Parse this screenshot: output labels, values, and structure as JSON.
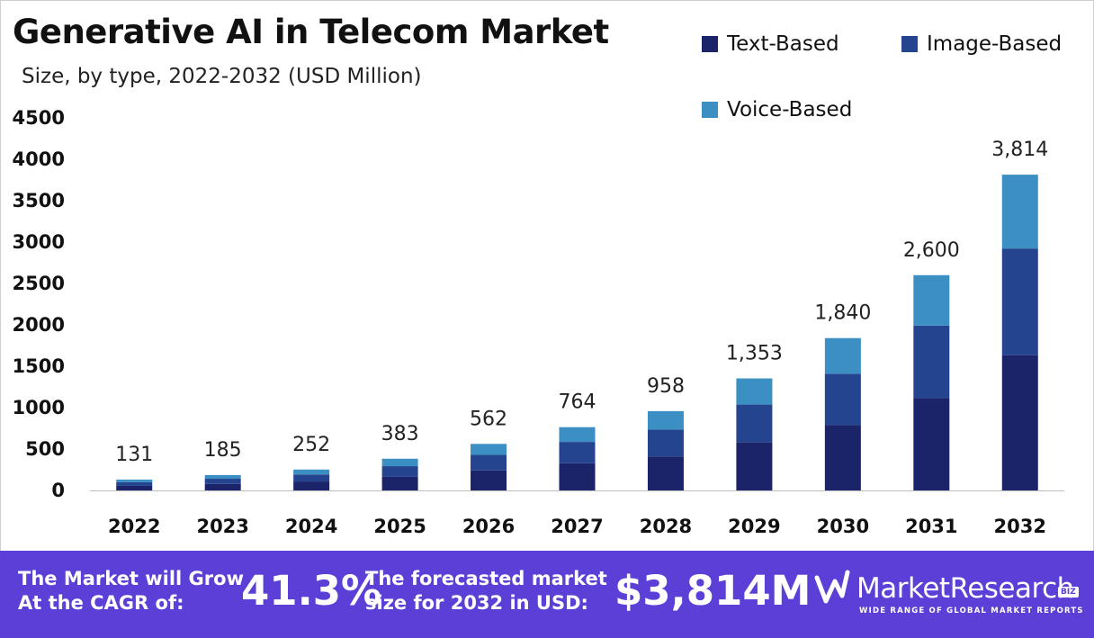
{
  "header": {
    "title": "Generative AI in Telecom Market",
    "subtitle": "Size, by type, 2022-2032 (USD Million)"
  },
  "legend": {
    "items": [
      {
        "label": "Text-Based",
        "color": "#1b2468"
      },
      {
        "label": "Image-Based",
        "color": "#25448f"
      },
      {
        "label": "Voice-Based",
        "color": "#3b8fc2"
      }
    ]
  },
  "chart_data": {
    "type": "bar",
    "stacked": true,
    "title": "Generative AI in Telecom Market",
    "subtitle": "Size, by type, 2022-2032 (USD Million)",
    "categories": [
      "2022",
      "2023",
      "2024",
      "2025",
      "2026",
      "2027",
      "2028",
      "2029",
      "2030",
      "2031",
      "2032"
    ],
    "series": [
      {
        "name": "Text-Based",
        "color": "#1b2468",
        "values": [
          55,
          79,
          108,
          164,
          241,
          328,
          411,
          580,
          789,
          1115,
          1634
        ]
      },
      {
        "name": "Image-Based",
        "color": "#25448f",
        "values": [
          44,
          62,
          85,
          129,
          189,
          258,
          324,
          457,
          620,
          876,
          1288
        ]
      },
      {
        "name": "Voice-Based",
        "color": "#3b8fc2",
        "values": [
          32,
          44,
          59,
          90,
          132,
          178,
          223,
          316,
          431,
          609,
          892
        ]
      }
    ],
    "totals": [
      131,
      185,
      252,
      383,
      562,
      764,
      958,
      1353,
      1840,
      2600,
      3814
    ],
    "total_labels": [
      "131",
      "185",
      "252",
      "383",
      "562",
      "764",
      "958",
      "1,353",
      "1,840",
      "2,600",
      "3,814"
    ],
    "y_ticks": [
      "0",
      "500",
      "1000",
      "1500",
      "2000",
      "2500",
      "3000",
      "3500",
      "4000",
      "4500"
    ],
    "ylim": [
      0,
      4500
    ],
    "grid": false,
    "legend_position": "top-right"
  },
  "footer": {
    "cagr_text_line1": "The Market will Grow",
    "cagr_text_line2": "At the CAGR of:",
    "cagr_value": "41.3%",
    "forecast_text_line1": "The forecasted market",
    "forecast_text_line2": "size for 2032 in USD:",
    "forecast_value": "$3,814M",
    "background": "#5b3fd6"
  },
  "brand": {
    "name": "MarketResearch",
    "badge": "BIZ",
    "tagline": "WIDE RANGE OF GLOBAL MARKET REPORTS",
    "icon": "market-research-logo-icon"
  }
}
